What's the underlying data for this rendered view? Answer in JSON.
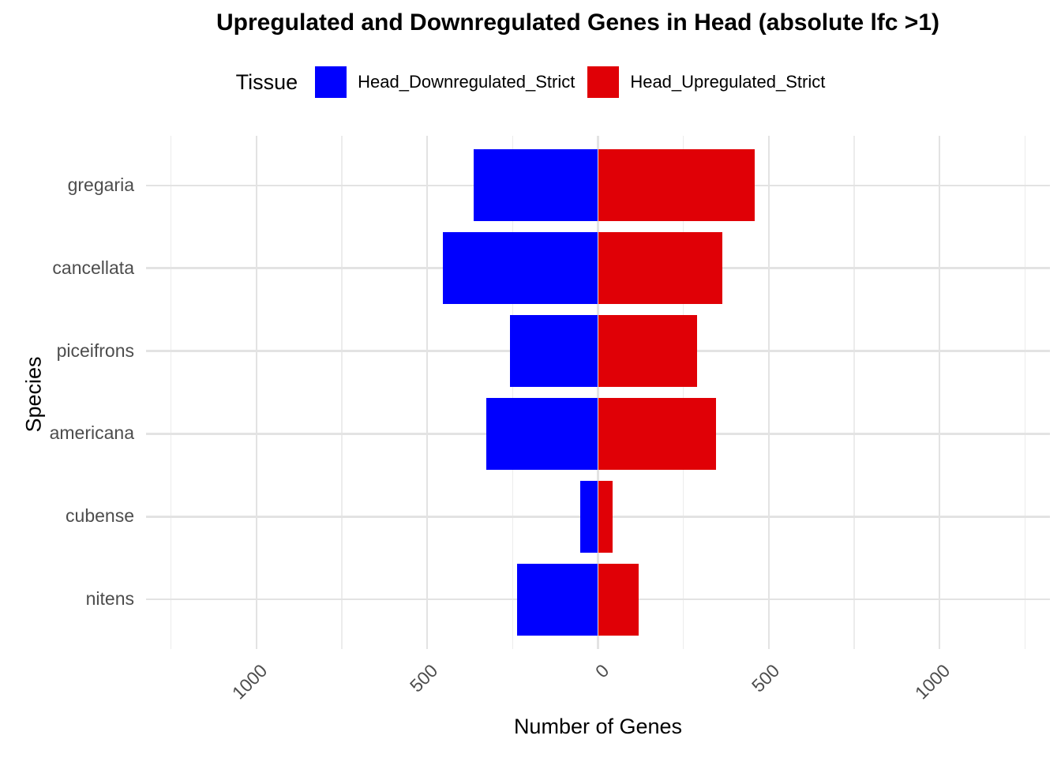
{
  "title": "Upregulated and Downregulated Genes in Head (absolute lfc >1)",
  "legend": {
    "title": "Tissue",
    "items": [
      {
        "label": "Head_Downregulated_Strict",
        "color": "#0000fe"
      },
      {
        "label": "Head_Upregulated_Strict",
        "color": "#e00006"
      }
    ]
  },
  "axes": {
    "x_title": "Number of Genes",
    "y_title": "Species",
    "x_ticks": [
      {
        "value": -1000,
        "label": "1000"
      },
      {
        "value": -500,
        "label": "500"
      },
      {
        "value": 0,
        "label": "0"
      },
      {
        "value": 500,
        "label": "500"
      },
      {
        "value": 1000,
        "label": "1000"
      }
    ],
    "x_minor_ticks": [
      -1250,
      -750,
      -250,
      250,
      750,
      1250
    ],
    "x_range": [
      -1323,
      1323
    ]
  },
  "chart_data": {
    "type": "bar",
    "subtype": "diverging-horizontal",
    "title": "Upregulated and Downregulated Genes in Head (absolute lfc >1)",
    "xlabel": "Number of Genes",
    "ylabel": "Species",
    "categories": [
      "gregaria",
      "cancellata",
      "piceifrons",
      "americana",
      "cubense",
      "nitens"
    ],
    "series": [
      {
        "name": "Head_Downregulated_Strict",
        "color": "#0000fe",
        "direction": "negative",
        "values": [
          364,
          453,
          258,
          328,
          51,
          237
        ]
      },
      {
        "name": "Head_Upregulated_Strict",
        "color": "#e00006",
        "direction": "positive",
        "values": [
          459,
          363,
          291,
          346,
          42,
          120
        ]
      }
    ],
    "xlim": [
      -1323,
      1323
    ],
    "x_tick_values": [
      -1000,
      -500,
      0,
      500,
      1000
    ],
    "x_tick_labels_absolute": true,
    "grid": true,
    "legend_position": "top"
  }
}
